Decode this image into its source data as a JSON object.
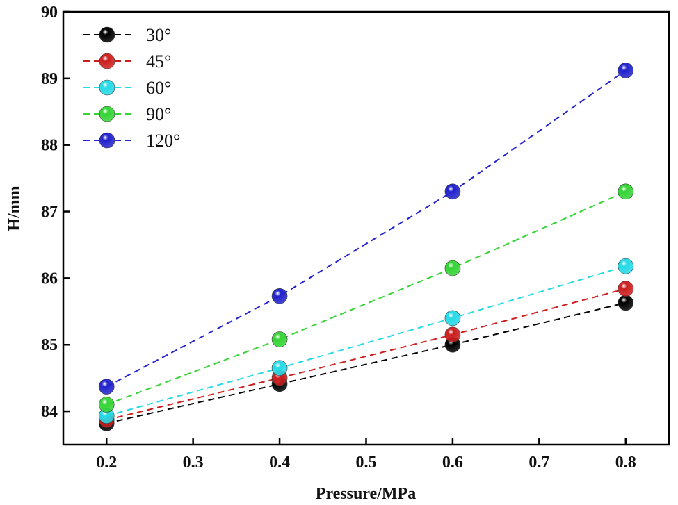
{
  "chart_data": {
    "type": "line",
    "title": "",
    "xlabel": "Pressure/MPa",
    "ylabel": "H/mm",
    "xlim": [
      0.15,
      0.85
    ],
    "ylim": [
      83.5,
      90
    ],
    "xticks": [
      "0.2",
      "0.3",
      "0.4",
      "0.5",
      "0.6",
      "0.7",
      "0.8"
    ],
    "yticks": [
      "84",
      "85",
      "86",
      "87",
      "88",
      "89",
      "90"
    ],
    "grid": false,
    "legend_position": "top-left",
    "x": [
      0.2,
      0.4,
      0.6,
      0.8
    ],
    "series": [
      {
        "name": "30°",
        "color": "#000000",
        "values": [
          83.82,
          84.41,
          85.0,
          85.63
        ]
      },
      {
        "name": "45°",
        "color": "#cc1f1f",
        "values": [
          83.87,
          84.5,
          85.15,
          85.84
        ]
      },
      {
        "name": "60°",
        "color": "#26d9e6",
        "values": [
          83.93,
          84.65,
          85.4,
          86.18
        ]
      },
      {
        "name": "90°",
        "color": "#35d435",
        "values": [
          84.1,
          85.08,
          86.15,
          87.3
        ]
      },
      {
        "name": "120°",
        "color": "#2222cc",
        "values": [
          84.37,
          85.73,
          87.3,
          89.12
        ]
      }
    ]
  }
}
